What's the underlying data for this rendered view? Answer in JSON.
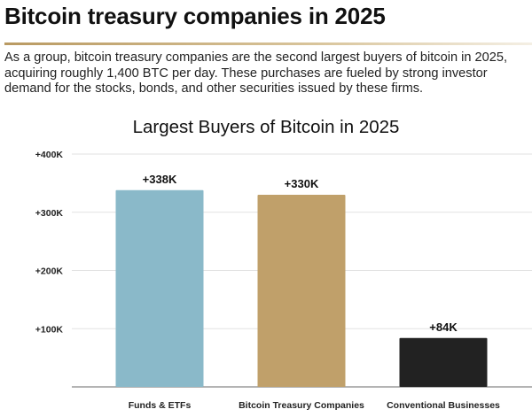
{
  "header": {
    "title": "Bitcoin treasury companies in 2025",
    "description": "As a group, bitcoin treasury companies are the second largest buyers of bitcoin in 2025, acquiring roughly 1,400 BTC per day. These purchases are fueled by strong investor demand for the stocks, bonds, and other securities issued by these firms."
  },
  "chart_data": {
    "type": "bar",
    "title": "Largest Buyers of Bitcoin in 2025",
    "categories": [
      "Funds & ETFs",
      "Bitcoin Treasury Companies",
      "Conventional Businesses"
    ],
    "values": [
      338000,
      330000,
      84000
    ],
    "data_labels": [
      "+338K",
      "+330K",
      "+84K"
    ],
    "colors": [
      "#8ab9c9",
      "#c0a06a",
      "#222222"
    ],
    "ylim": [
      0,
      400000
    ],
    "yticks": [
      100000,
      200000,
      300000,
      400000
    ],
    "ytick_labels": [
      "+100K",
      "+200K",
      "+300K",
      "+400K"
    ],
    "xlabel": "",
    "ylabel": "",
    "grid": true,
    "legend": "none"
  }
}
